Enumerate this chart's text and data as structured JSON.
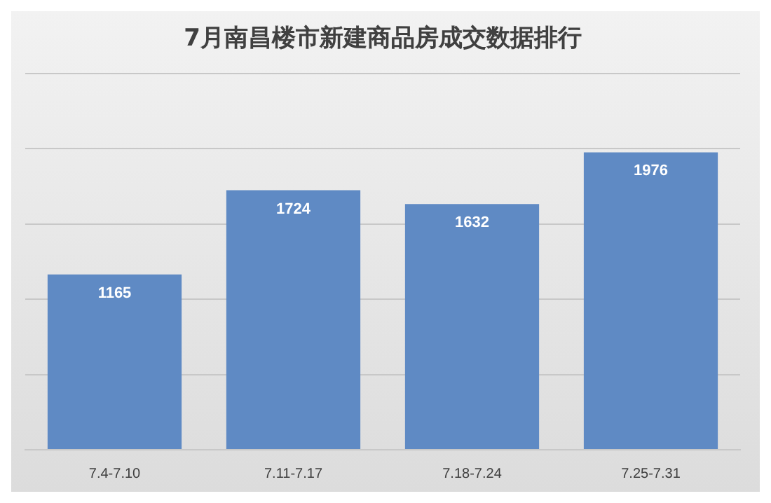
{
  "chart_data": {
    "type": "bar",
    "title": "7月南昌楼市新建商品房成交数据排行",
    "categories": [
      "7.4-7.10",
      "7.11-7.17",
      "7.18-7.24",
      "7.25-7.31"
    ],
    "values": [
      1165,
      1724,
      1632,
      1976
    ],
    "color": "#5f8ac4",
    "ylim": [
      0,
      2500
    ],
    "yticks": [
      {
        "value": 0,
        "label": null
      },
      {
        "value": 500,
        "label": null
      },
      {
        "value": 1000,
        "label": null
      },
      {
        "value": 1500,
        "label": null
      },
      {
        "value": 2000,
        "label": null
      },
      {
        "value": 2500,
        "label": null
      }
    ],
    "tick_labels": "x",
    "grid": "y",
    "data_labels": true,
    "legend": false
  }
}
